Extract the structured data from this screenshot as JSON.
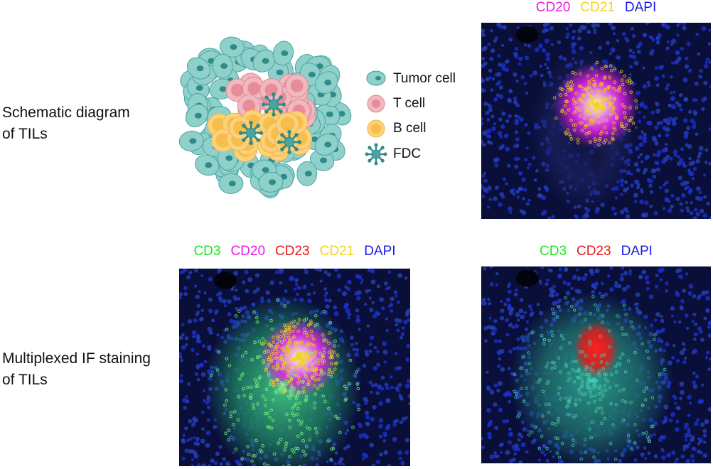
{
  "rows": [
    {
      "label_lines": [
        "Schematic diagram",
        "of TILs"
      ]
    },
    {
      "label_lines": [
        "Multiplexed IF staining",
        "of TILs"
      ]
    }
  ],
  "legend": [
    "Tumor cell",
    "T cell",
    "B cell",
    "FDC"
  ],
  "panels": [
    {
      "channels": [
        {
          "name": "CD20",
          "color": "#e61ee6"
        },
        {
          "name": "CD21",
          "color": "#f2d21a"
        },
        {
          "name": "DAPI",
          "color": "#1a1ae6"
        }
      ]
    },
    {
      "channels": [
        {
          "name": "CD3",
          "color": "#1ee61e"
        },
        {
          "name": "CD20",
          "color": "#e61ee6"
        },
        {
          "name": "CD23",
          "color": "#e61a1a"
        },
        {
          "name": "CD21",
          "color": "#f2d21a"
        },
        {
          "name": "DAPI",
          "color": "#1a1ae6"
        }
      ]
    },
    {
      "channels": [
        {
          "name": "CD3",
          "color": "#1ee61e"
        },
        {
          "name": "CD23",
          "color": "#e61a1a"
        },
        {
          "name": "DAPI",
          "color": "#1a1ae6"
        }
      ]
    }
  ]
}
